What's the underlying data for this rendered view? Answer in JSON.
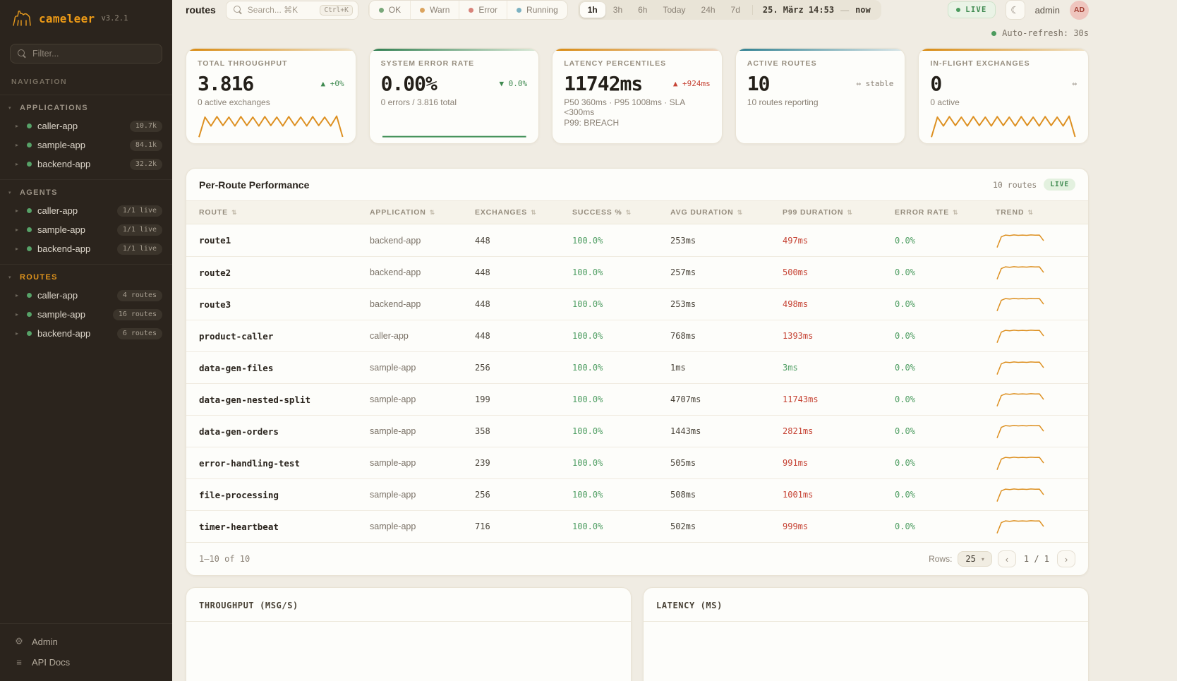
{
  "icons": {
    "sort": "⇅",
    "moon": "☾",
    "gear": "⚙",
    "api_docs": "≡",
    "caret_right": "▸",
    "caret_down": "▾",
    "chevron_left": "‹",
    "chevron_right": "›",
    "dropdown": "▾"
  },
  "sidebar": {
    "logo_name": "cameleer",
    "logo_version": "v3.2.1",
    "filter_placeholder": "Filter...",
    "nav_label": "NAVIGATION",
    "sections": [
      {
        "label": "APPLICATIONS",
        "active": false,
        "items": [
          {
            "label": "caller-app",
            "badge": "10.7k"
          },
          {
            "label": "sample-app",
            "badge": "84.1k"
          },
          {
            "label": "backend-app",
            "badge": "32.2k"
          }
        ]
      },
      {
        "label": "AGENTS",
        "active": false,
        "items": [
          {
            "label": "caller-app",
            "badge": "1/1 live"
          },
          {
            "label": "sample-app",
            "badge": "1/1 live"
          },
          {
            "label": "backend-app",
            "badge": "1/1 live"
          }
        ]
      },
      {
        "label": "ROUTES",
        "active": true,
        "items": [
          {
            "label": "caller-app",
            "badge": "4 routes"
          },
          {
            "label": "sample-app",
            "badge": "16 routes"
          },
          {
            "label": "backend-app",
            "badge": "6 routes"
          }
        ]
      }
    ],
    "footer": {
      "admin": "Admin",
      "api_docs": "API Docs"
    }
  },
  "topbar": {
    "title": "routes",
    "search_placeholder": "Search... ⌘K",
    "search_kbd": "Ctrl+K",
    "status_filters": [
      {
        "label": "OK",
        "color": "#79a87b"
      },
      {
        "label": "Warn",
        "color": "#dba45f"
      },
      {
        "label": "Error",
        "color": "#d8837a"
      },
      {
        "label": "Running",
        "color": "#7cb2c2"
      }
    ],
    "time_ranges": [
      {
        "label": "1h",
        "active": true
      },
      {
        "label": "3h",
        "active": false
      },
      {
        "label": "6h",
        "active": false
      },
      {
        "label": "Today",
        "active": false
      },
      {
        "label": "24h",
        "active": false
      },
      {
        "label": "7d",
        "active": false
      }
    ],
    "time_from": "25. März 14:53",
    "time_sep": "—",
    "time_to": "now",
    "live": "LIVE",
    "user_name": "admin",
    "user_initials": "AD"
  },
  "autorefresh": "Auto-refresh: 30s",
  "kpi": [
    {
      "label": "TOTAL THROUGHPUT",
      "value": "3.816",
      "delta": "▲ +0%",
      "subtitle": "0 active exchanges",
      "spark_color": "#dd9021",
      "sparkline": [
        0.02,
        0.88,
        0.5,
        0.9,
        0.52,
        0.88,
        0.5,
        0.9,
        0.52,
        0.88,
        0.5,
        0.9,
        0.52,
        0.88,
        0.5,
        0.9,
        0.52,
        0.88,
        0.5,
        0.9,
        0.52,
        0.88,
        0.5,
        0.92,
        0.03
      ]
    },
    {
      "label": "SYSTEM ERROR RATE",
      "value": "0.00%",
      "delta": "▼ 0.0%",
      "subtitle": "0 errors / 3.816 total",
      "spark_color": "#3f8f55",
      "sparkline": [
        0.04,
        0.04,
        0.04
      ]
    },
    {
      "label": "LATENCY PERCENTILES",
      "value": "11742ms",
      "delta": "▲ +924ms",
      "subtitle": "P50 360ms · P95 1008ms · SLA <300ms",
      "subtitle2": "P99: BREACH"
    },
    {
      "label": "ACTIVE ROUTES",
      "value": "10",
      "delta": "⇔ stable",
      "subtitle": "10 routes reporting"
    },
    {
      "label": "IN-FLIGHT EXCHANGES",
      "value": "0",
      "delta": "⇔",
      "subtitle": "0 active",
      "spark_color": "#dd9021",
      "sparkline": [
        0.02,
        0.88,
        0.5,
        0.9,
        0.52,
        0.88,
        0.5,
        0.9,
        0.52,
        0.88,
        0.5,
        0.9,
        0.52,
        0.88,
        0.5,
        0.9,
        0.52,
        0.88,
        0.5,
        0.9,
        0.52,
        0.88,
        0.5,
        0.92,
        0.03
      ]
    }
  ],
  "table": {
    "title": "Per-Route Performance",
    "count_label": "10 routes",
    "live_badge": "LIVE",
    "columns": [
      "ROUTE",
      "APPLICATION",
      "EXCHANGES",
      "SUCCESS %",
      "AVG DURATION",
      "P99 DURATION",
      "ERROR RATE",
      "TREND"
    ],
    "trend_color": "#dd9021",
    "trend_sparkline": [
      0.06,
      0.78,
      0.9,
      0.87,
      0.91,
      0.88,
      0.9,
      0.88,
      0.91,
      0.89,
      0.9,
      0.52
    ],
    "rows": [
      {
        "route": "route1",
        "app": "backend-app",
        "exchanges": "448",
        "success": "100.0%",
        "avg": "253ms",
        "p99": "497ms",
        "p99_status": "breach",
        "error": "0.0%"
      },
      {
        "route": "route2",
        "app": "backend-app",
        "exchanges": "448",
        "success": "100.0%",
        "avg": "257ms",
        "p99": "500ms",
        "p99_status": "breach",
        "error": "0.0%"
      },
      {
        "route": "route3",
        "app": "backend-app",
        "exchanges": "448",
        "success": "100.0%",
        "avg": "253ms",
        "p99": "498ms",
        "p99_status": "breach",
        "error": "0.0%"
      },
      {
        "route": "product-caller",
        "app": "caller-app",
        "exchanges": "448",
        "success": "100.0%",
        "avg": "768ms",
        "p99": "1393ms",
        "p99_status": "breach",
        "error": "0.0%"
      },
      {
        "route": "data-gen-files",
        "app": "sample-app",
        "exchanges": "256",
        "success": "100.0%",
        "avg": "1ms",
        "p99": "3ms",
        "p99_status": "ok",
        "error": "0.0%"
      },
      {
        "route": "data-gen-nested-split",
        "app": "sample-app",
        "exchanges": "199",
        "success": "100.0%",
        "avg": "4707ms",
        "p99": "11743ms",
        "p99_status": "breach",
        "error": "0.0%"
      },
      {
        "route": "data-gen-orders",
        "app": "sample-app",
        "exchanges": "358",
        "success": "100.0%",
        "avg": "1443ms",
        "p99": "2821ms",
        "p99_status": "breach",
        "error": "0.0%"
      },
      {
        "route": "error-handling-test",
        "app": "sample-app",
        "exchanges": "239",
        "success": "100.0%",
        "avg": "505ms",
        "p99": "991ms",
        "p99_status": "breach",
        "error": "0.0%"
      },
      {
        "route": "file-processing",
        "app": "sample-app",
        "exchanges": "256",
        "success": "100.0%",
        "avg": "508ms",
        "p99": "1001ms",
        "p99_status": "breach",
        "error": "0.0%"
      },
      {
        "route": "timer-heartbeat",
        "app": "sample-app",
        "exchanges": "716",
        "success": "100.0%",
        "avg": "502ms",
        "p99": "999ms",
        "p99_status": "breach",
        "error": "0.0%"
      }
    ],
    "footer": {
      "range": "1–10 of 10",
      "rows_label": "Rows:",
      "rows_value": "25",
      "page": "1 / 1"
    }
  },
  "charts": [
    {
      "title": "THROUGHPUT (MSG/S)"
    },
    {
      "title": "LATENCY (MS)"
    }
  ]
}
